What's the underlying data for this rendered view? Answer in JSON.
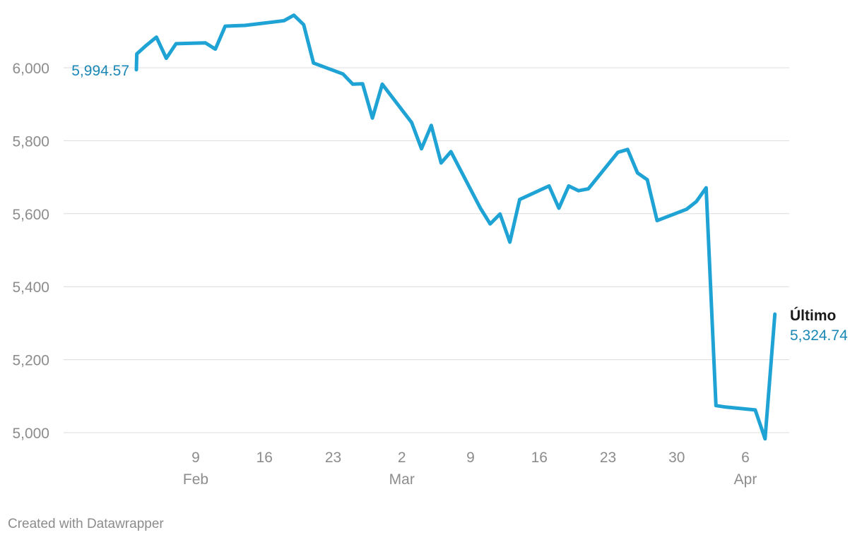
{
  "chart_data": {
    "type": "line",
    "title": "",
    "xlabel": "",
    "ylabel": "",
    "ylim": [
      5000,
      6100
    ],
    "y_ticks": [
      "5,000",
      "5,200",
      "5,400",
      "5,600",
      "5,800",
      "6,000"
    ],
    "y_tick_values": [
      5000,
      5200,
      5400,
      5600,
      5800,
      6000
    ],
    "x_ticks": [
      {
        "day": 9,
        "label": "9",
        "month": "Feb"
      },
      {
        "day": 16,
        "label": "16",
        "month": ""
      },
      {
        "day": 23,
        "label": "23",
        "month": ""
      },
      {
        "day": 30,
        "label": "2",
        "month": "Mar"
      },
      {
        "day": 37,
        "label": "9",
        "month": ""
      },
      {
        "day": 44,
        "label": "16",
        "month": ""
      },
      {
        "day": 51,
        "label": "23",
        "month": ""
      },
      {
        "day": 58,
        "label": "30",
        "month": ""
      },
      {
        "day": 65,
        "label": "6",
        "month": "Apr"
      }
    ],
    "grid": true,
    "series": [
      {
        "color": "#1fa3d4",
        "x": [
          "2025-01-31",
          "2025-02-03",
          "2025-02-04",
          "2025-02-05",
          "2025-02-06",
          "2025-02-07",
          "2025-02-10",
          "2025-02-11",
          "2025-02-12",
          "2025-02-13",
          "2025-02-14",
          "2025-02-18",
          "2025-02-19",
          "2025-02-20",
          "2025-02-21",
          "2025-02-24",
          "2025-02-25",
          "2025-02-26",
          "2025-02-27",
          "2025-02-28",
          "2025-03-03",
          "2025-03-04",
          "2025-03-05",
          "2025-03-06",
          "2025-03-07",
          "2025-03-10",
          "2025-03-11",
          "2025-03-12",
          "2025-03-13",
          "2025-03-14",
          "2025-03-17",
          "2025-03-18",
          "2025-03-19",
          "2025-03-20",
          "2025-03-21",
          "2025-03-24",
          "2025-03-25",
          "2025-03-26",
          "2025-03-27",
          "2025-03-28",
          "2025-03-31",
          "2025-04-01",
          "2025-04-02",
          "2025-04-03",
          "2025-04-04",
          "2025-04-07",
          "2025-04-08",
          "2025-04-09"
        ],
        "values": [
          5994.57,
          6038,
          6062,
          6084,
          6026,
          6066,
          6068,
          6051,
          6114,
          6115,
          6116,
          6129,
          6144,
          6118,
          6013,
          5983,
          5955,
          5956,
          5862,
          5955,
          5850,
          5778,
          5842,
          5739,
          5770,
          5615,
          5572,
          5599,
          5522,
          5639,
          5676,
          5615,
          5676,
          5663,
          5668,
          5768,
          5776,
          5712,
          5693,
          5581,
          5612,
          5633,
          5671,
          5074,
          5070,
          5062,
          4983,
          5324.74
        ]
      }
    ],
    "start_label": "5,994.57",
    "end_label_title": "Último",
    "end_label_value": "5,324.74",
    "credit": "Created with Datawrapper"
  }
}
